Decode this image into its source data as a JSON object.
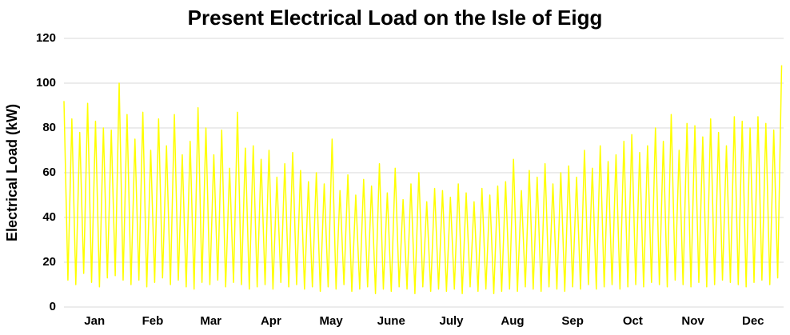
{
  "chart_data": {
    "type": "line",
    "title": "Present Electrical Load on the Isle of Eigg",
    "y_label": "Electrical Load (kW)",
    "color": "#ffff00",
    "grid": true,
    "xlim": [
      0,
      8760
    ],
    "ylim": [
      0,
      120
    ],
    "yticks": [
      0,
      20,
      40,
      60,
      80,
      100,
      120
    ],
    "xticks": [
      {
        "value": 372,
        "label": "Jan"
      },
      {
        "value": 1080,
        "label": "Feb"
      },
      {
        "value": 1788,
        "label": "Mar"
      },
      {
        "value": 2520,
        "label": "Apr"
      },
      {
        "value": 3252,
        "label": "May"
      },
      {
        "value": 3984,
        "label": "June"
      },
      {
        "value": 4716,
        "label": "July"
      },
      {
        "value": 5460,
        "label": "Aug"
      },
      {
        "value": 6192,
        "label": "Sep"
      },
      {
        "value": 6924,
        "label": "Oct"
      },
      {
        "value": 7656,
        "label": "Nov"
      },
      {
        "value": 8388,
        "label": "Dec"
      }
    ],
    "x": [
      0,
      48,
      96,
      144,
      192,
      240,
      288,
      336,
      384,
      432,
      480,
      528,
      576,
      624,
      672,
      720,
      768,
      816,
      864,
      912,
      960,
      1008,
      1056,
      1104,
      1152,
      1200,
      1248,
      1296,
      1344,
      1392,
      1440,
      1488,
      1536,
      1584,
      1632,
      1680,
      1728,
      1776,
      1824,
      1872,
      1920,
      1968,
      2016,
      2064,
      2112,
      2160,
      2208,
      2256,
      2304,
      2352,
      2400,
      2448,
      2496,
      2544,
      2592,
      2640,
      2688,
      2736,
      2784,
      2832,
      2880,
      2928,
      2976,
      3024,
      3072,
      3120,
      3168,
      3216,
      3264,
      3312,
      3360,
      3408,
      3456,
      3504,
      3552,
      3600,
      3648,
      3696,
      3744,
      3792,
      3840,
      3888,
      3936,
      3984,
      4032,
      4080,
      4128,
      4176,
      4224,
      4272,
      4320,
      4368,
      4416,
      4464,
      4512,
      4560,
      4608,
      4656,
      4704,
      4752,
      4800,
      4848,
      4896,
      4944,
      4992,
      5040,
      5088,
      5136,
      5184,
      5232,
      5280,
      5328,
      5376,
      5424,
      5472,
      5520,
      5568,
      5616,
      5664,
      5712,
      5760,
      5808,
      5856,
      5904,
      5952,
      6000,
      6048,
      6096,
      6144,
      6192,
      6240,
      6288,
      6336,
      6384,
      6432,
      6480,
      6528,
      6576,
      6624,
      6672,
      6720,
      6768,
      6816,
      6864,
      6912,
      6960,
      7008,
      7056,
      7104,
      7152,
      7200,
      7248,
      7296,
      7344,
      7392,
      7440,
      7488,
      7536,
      7584,
      7632,
      7680,
      7728,
      7776,
      7824,
      7872,
      7920,
      7968,
      8016,
      8064,
      8112,
      8160,
      8208,
      8256,
      8304,
      8352,
      8400,
      8448,
      8496,
      8544,
      8592,
      8640,
      8688,
      8736
    ],
    "values": [
      92,
      12,
      84,
      10,
      78,
      15,
      91,
      11,
      83,
      9,
      80,
      13,
      79,
      14,
      100,
      12,
      86,
      10,
      75,
      12,
      87,
      9,
      70,
      11,
      84,
      13,
      72,
      10,
      86,
      12,
      68,
      9,
      74,
      8,
      89,
      11,
      80,
      10,
      68,
      12,
      79,
      9,
      62,
      11,
      87,
      10,
      71,
      8,
      72,
      9,
      66,
      10,
      70,
      8,
      58,
      11,
      64,
      9,
      69,
      10,
      61,
      8,
      56,
      9,
      60,
      7,
      55,
      9,
      75,
      8,
      52,
      10,
      59,
      7,
      50,
      8,
      57,
      9,
      54,
      6,
      64,
      8,
      51,
      7,
      62,
      9,
      48,
      8,
      55,
      6,
      60,
      9,
      47,
      7,
      53,
      8,
      52,
      7,
      49,
      8,
      55,
      6,
      51,
      9,
      47,
      7,
      53,
      8,
      50,
      6,
      54,
      7,
      56,
      8,
      66,
      7,
      52,
      9,
      61,
      8,
      58,
      7,
      64,
      9,
      55,
      8,
      60,
      7,
      63,
      9,
      58,
      8,
      70,
      10,
      62,
      8,
      72,
      9,
      65,
      10,
      68,
      8,
      74,
      9,
      77,
      10,
      69,
      9,
      72,
      11,
      80,
      10,
      74,
      9,
      86,
      12,
      70,
      10,
      82,
      9,
      81,
      11,
      76,
      9,
      84,
      10,
      78,
      12,
      72,
      11,
      85,
      10,
      83,
      9,
      80,
      11,
      85,
      12,
      82,
      10,
      79,
      13,
      108
    ]
  }
}
